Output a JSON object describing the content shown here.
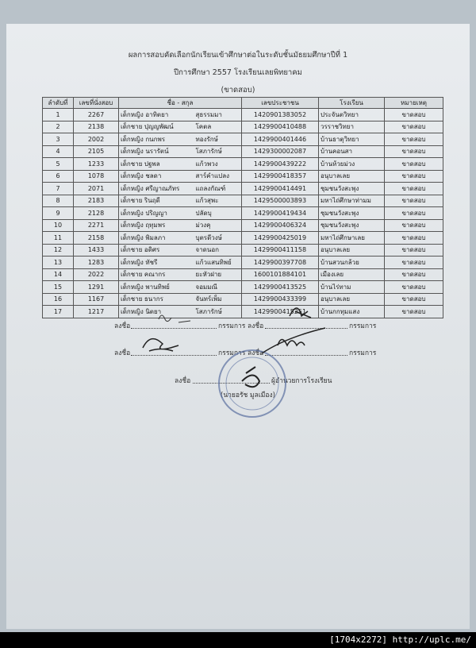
{
  "header": {
    "title": "ผลการสอบคัดเลือกนักเรียนเข้าศึกษาต่อในระดับชั้นมัธยมศึกษาปีที่ 1",
    "subtitle": "ปีการศึกษา 2557  โรงเรียนเลยพิทยาคม",
    "status": "(ขาดสอบ)"
  },
  "table": {
    "columns": [
      "ลำดับที่",
      "เลขที่นั่งสอบ",
      "ชื่อ - สกุล",
      "เลขประชาชน",
      "โรงเรียน",
      "หมายเหตุ"
    ],
    "rows": [
      [
        "1",
        "2267",
        "เด็กหญิง อาทิตยา",
        "สุธรรมมา",
        "1420901383052",
        "ประจันตวิทยา",
        "ขาดสอบ"
      ],
      [
        "2",
        "2138",
        "เด็กชาย ปุญญพัฒน์",
        "โคตล",
        "1429900410488",
        "วรราชวิทยา",
        "ขาดสอบ"
      ],
      [
        "3",
        "2002",
        "เด็กหญิง กนกพร",
        "ทองรักษ์",
        "1429900401446",
        "บ้านธาตุวิทยา",
        "ขาดสอบ"
      ],
      [
        "4",
        "2105",
        "เด็กหญิง นรารัตน์",
        "โสภารักษ์",
        "1429300002087",
        "บ้านคอนสา",
        "ขาดสอบ"
      ],
      [
        "5",
        "1233",
        "เด็กชาย ปฐพล",
        "แก้วพวง",
        "1429900439222",
        "บ้านห้วยม่วง",
        "ขาดสอบ"
      ],
      [
        "6",
        "1078",
        "เด็กหญิง ชลดา",
        "สาร์คำแปลง",
        "1429900418357",
        "อนุบาลเลย",
        "ขาดสอบ"
      ],
      [
        "7",
        "2071",
        "เด็กหญิง ศรีญาณภัทร",
        "แถลงกัณฑ์",
        "1429900414491",
        "ชุมชนวังสะพุง",
        "ขาดสอบ"
      ],
      [
        "8",
        "2183",
        "เด็กชาย รินฤดี",
        "แก้วสุพะ",
        "1429500003893",
        "มหาไถ่ศึกษาท่ามม",
        "ขาดสอบ"
      ],
      [
        "9",
        "2128",
        "เด็กหญิง ปริญญา",
        "ปลัดบุ",
        "1429900419434",
        "ชุมชนวังสะพุง",
        "ขาดสอบ"
      ],
      [
        "10",
        "2271",
        "เด็กหญิง ฤทุมพร",
        "ม่วงคุ",
        "1429900406324",
        "ชุมชนวังสะพุง",
        "ขาดสอบ"
      ],
      [
        "11",
        "2158",
        "เด็กหญิง พิมลภา",
        "บุตรดีวงษ์",
        "1429900425019",
        "มหาไถ่ศึกษาเลย",
        "ขาดสอบ"
      ],
      [
        "12",
        "1433",
        "เด็กชาย อดิศร",
        "จาดนอก",
        "1429900411158",
        "อนุบาลเลย",
        "ขาดสอบ"
      ],
      [
        "13",
        "1283",
        "เด็กหญิง ทัชรี",
        "แก้วแสนทิพย์",
        "1429900397708",
        "บ้านสวนกล้วย",
        "ขาดสอบ"
      ],
      [
        "14",
        "2022",
        "เด็กชาย คณากร",
        "ยะหัวฝาย",
        "1600101884101",
        "เมืองเลย",
        "ขาดสอบ"
      ],
      [
        "15",
        "1291",
        "เด็กหญิง พานทิพย์",
        "จอมมณี",
        "1429900413525",
        "บ้านไร่ทาม",
        "ขาดสอบ"
      ],
      [
        "16",
        "1167",
        "เด็กชาย ธนากร",
        "จันทร์เพ็ม",
        "1429900433399",
        "อนุบาลเลย",
        "ขาดสอบ"
      ],
      [
        "17",
        "1217",
        "เด็กหญิง นิตยา",
        "โสภารักษ์",
        "1429900415251",
        "บ้านกกทุมแสง",
        "ขาดสอบ"
      ]
    ]
  },
  "signatures": [
    {
      "label": "ลงชื่อ",
      "role": "กรรมการ"
    },
    {
      "label": "ลงชื่อ",
      "role": "กรรมการ"
    },
    {
      "label": "ลงชื่อ",
      "role": "กรรมการ"
    },
    {
      "label": "ลงชื่อ",
      "role": "กรรมการ"
    },
    {
      "label": "ลงชื่อ",
      "role": "ผู้อำนวยการโรงเรียน",
      "name": "(นายอรัช มูลเมือง)"
    }
  ],
  "watermark": "[1704x2272] http://uplc.me/"
}
